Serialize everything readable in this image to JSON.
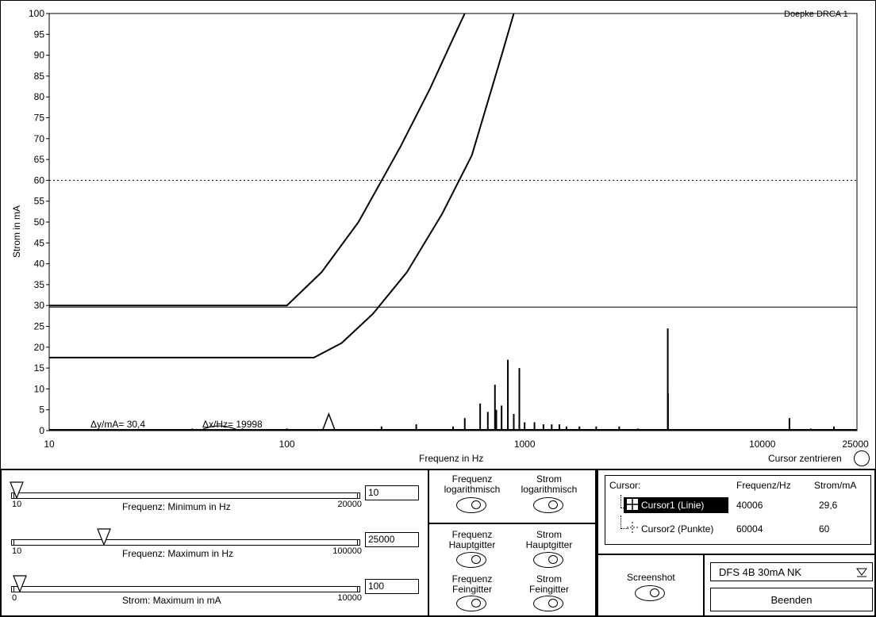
{
  "chart_data": {
    "type": "line",
    "watermark_label": "Doepke DRCA 1",
    "xlabel": "Frequenz in Hz",
    "ylabel": "Strom in mA",
    "xscale": "log",
    "xlim": [
      10,
      25000
    ],
    "ylim": [
      0,
      100
    ],
    "x_ticks": [
      "10",
      "100",
      "1000",
      "10000",
      "25000"
    ],
    "y_ticks": [
      "0",
      "5",
      "10",
      "15",
      "20",
      "25",
      "30",
      "35",
      "40",
      "45",
      "50",
      "55",
      "60",
      "65",
      "70",
      "75",
      "80",
      "85",
      "90",
      "95",
      "100"
    ],
    "grid": false,
    "threshold_curves": [
      {
        "x": [
          10,
          100,
          140,
          200,
          300,
          400,
          500,
          560
        ],
        "y": [
          30,
          30,
          38,
          50,
          68,
          82,
          94,
          100
        ]
      },
      {
        "x": [
          10,
          130,
          170,
          230,
          320,
          450,
          600,
          800,
          900
        ],
        "y": [
          17.5,
          17.5,
          21,
          28,
          38,
          52,
          66,
          90,
          100
        ]
      }
    ],
    "cursor_lines": [
      {
        "style": "solid",
        "y": 29.6
      },
      {
        "style": "dotted",
        "y": 60
      }
    ],
    "spectrum": {
      "x": [
        40,
        52,
        65,
        100,
        150,
        250,
        350,
        500,
        560,
        650,
        700,
        750,
        760,
        800,
        850,
        900,
        950,
        1000,
        1100,
        1200,
        1300,
        1400,
        1500,
        1700,
        2000,
        2500,
        3000,
        4000,
        4010,
        13000,
        16000,
        20000
      ],
      "y": [
        0.5,
        1.5,
        0.5,
        0.5,
        4,
        1,
        1.5,
        1,
        3,
        6.5,
        4.5,
        11,
        5,
        6,
        17,
        4,
        15,
        2,
        2,
        1.5,
        1.5,
        1.5,
        1,
        1,
        1,
        1,
        0.5,
        24.5,
        9,
        3,
        0.5,
        1
      ]
    },
    "annotations": [
      "Δy/mA= 30,4",
      "Δx/Hz= 19998"
    ],
    "cursor_center_label": "Cursor zentrieren"
  },
  "sliders": [
    {
      "label": "Frequenz: Minimum in Hz",
      "min": "10",
      "max": "20000",
      "value": "10",
      "level": 0.0
    },
    {
      "label": "Frequenz: Maximum in Hz",
      "min": "10",
      "max": "100000",
      "value": "25000",
      "level": 0.25
    },
    {
      "label": "Strom: Maximum in mA",
      "min": "0",
      "max": "10000",
      "value": "100",
      "level": 0.01
    }
  ],
  "toggles": {
    "freq_log": "Frequenz logarithmisch",
    "strom_log": "Strom logarithmisch",
    "freq_haupt": "Frequenz Hauptgitter",
    "strom_haupt": "Strom Hauptgitter",
    "freq_fein": "Frequenz Feingitter",
    "strom_fein": "Strom Feingitter"
  },
  "cursor_table": {
    "header": [
      "Cursor:",
      "Frequenz/Hz",
      "Strom/mA"
    ],
    "rows": [
      {
        "name": "Cursor1 (Linie)",
        "freq": "40006",
        "strom": "29,6"
      },
      {
        "name": "Cursor2 (Punkte)",
        "freq": "60004",
        "strom": "60"
      }
    ]
  },
  "screenshot_label": "Screenshot",
  "dropdown_value": "DFS 4B 30mA NK",
  "quit_label": "Beenden"
}
